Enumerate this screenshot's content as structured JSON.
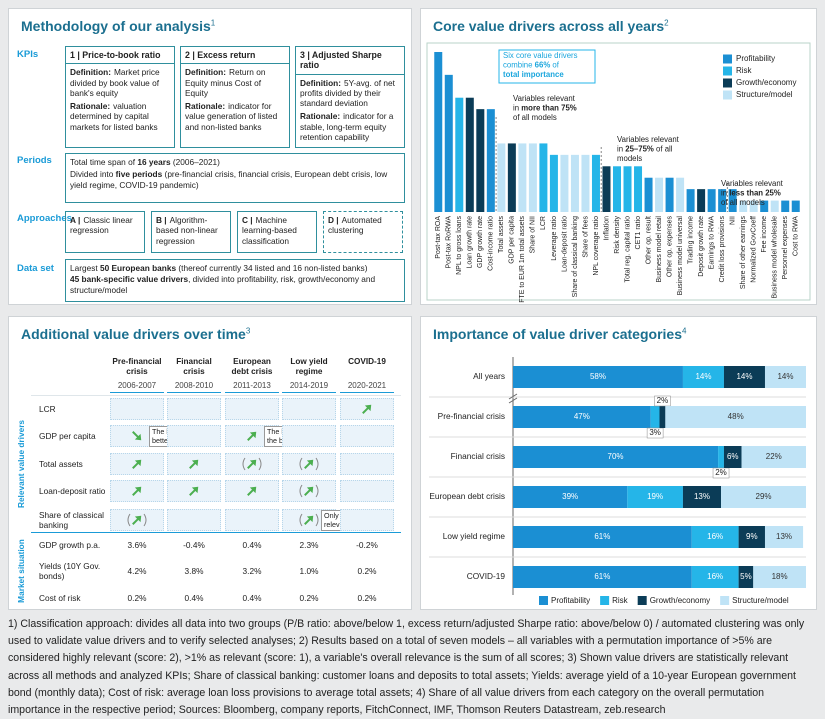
{
  "methodology": {
    "title": "Methodology of our analysis",
    "title_note": "1",
    "sections": {
      "kpis": "KPIs",
      "periods": "Periods",
      "approaches": "Approaches",
      "data_set": "Data set"
    },
    "kpis": [
      {
        "heading": "1 | Price-to-book ratio",
        "definition_label": "Definition:",
        "definition": "Market price divided by book value of bank's equity",
        "rationale_label": "Rationale:",
        "rationale": "valuation determined by capital markets for listed banks"
      },
      {
        "heading": "2 | Excess return",
        "definition_label": "Definition:",
        "definition": "Return on Equity minus Cost of Equity",
        "rationale_label": "Rationale:",
        "rationale": "indicator for value generation of listed and non-listed banks"
      },
      {
        "heading": "3 | Adjusted Sharpe ratio",
        "definition_label": "Definition:",
        "definition": "5Y-avg. of net profits divided by their standard deviation",
        "rationale_label": "Rationale:",
        "rationale": "indicator for a stable, long-term equity retention capability"
      }
    ],
    "periods": [
      [
        {
          "text": "Total time span of "
        },
        {
          "text": "16 years",
          "bold": true
        },
        {
          "text": " (2006–2021)"
        }
      ],
      [
        {
          "text": "Divided into "
        },
        {
          "text": "five periods",
          "bold": true
        },
        {
          "text": " (pre-financial crisis, financial crisis, European debt crisis, low yield regime, COVID-19 pandemic)"
        }
      ]
    ],
    "approaches": [
      {
        "key": "A |",
        "text": "Classic linear regression",
        "dashed": false
      },
      {
        "key": "B |",
        "text": "Algorithm-based non-linear regression",
        "dashed": false
      },
      {
        "key": "C |",
        "text": "Machine learning-based classification",
        "dashed": false
      },
      {
        "key": "D |",
        "text": "Automated clustering",
        "dashed": true
      }
    ],
    "data_set": [
      [
        {
          "text": "Largest "
        },
        {
          "text": "50 European banks",
          "bold": true
        },
        {
          "text": " (thereof currently 34 listed and 16 non-listed banks)"
        }
      ],
      [
        {
          "text": "45 bank-specific value drivers",
          "bold": true
        },
        {
          "text": ", divided into profitability, risk, growth/economy and structure/model"
        }
      ]
    ]
  },
  "chart_data": [
    {
      "type": "bar",
      "title": "Core value drivers across all years",
      "title_note": "2",
      "categories": [
        "Post-tax ROA",
        "Post-tax RoRWA",
        "NPL to gross loans",
        "Loan growth rate",
        "GDP growth rate",
        "Cost-income ratio",
        "Total assets",
        "GDP per capita",
        "FTE to EUR 1m total assets",
        "Share of NII",
        "LCR",
        "Leverage ratio",
        "Loan-deposit ratio",
        "Share of classical banking",
        "Share of fees",
        "NPL coverage ratio",
        "Inflation",
        "Risk density",
        "Total reg. capital ratio",
        "CET1 ratio",
        "Other op. result",
        "Business model retail",
        "Other op. expenses",
        "Business model universal",
        "Trading income",
        "Deposit growth rate",
        "Earnings to RWA",
        "Credit loss provisions",
        "NII",
        "Share of other earnings",
        "Normalized GovCoeff",
        "Fee income",
        "Business model wholesale",
        "Personnel expenses",
        "Cost to RWA"
      ],
      "values": [
        14,
        12,
        10,
        10,
        9,
        9,
        6,
        6,
        6,
        6,
        6,
        5,
        5,
        5,
        5,
        5,
        4,
        4,
        4,
        4,
        3,
        3,
        3,
        3,
        2,
        2,
        2,
        2,
        2,
        1,
        1,
        1,
        1,
        1,
        1
      ],
      "colors": [
        "#1b8fd3",
        "#1b8fd3",
        "#25b5e8",
        "#0b3c57",
        "#0b3c57",
        "#1b8fd3",
        "#bfe3f6",
        "#0b3c57",
        "#bfe3f6",
        "#bfe3f6",
        "#25b5e8",
        "#25b5e8",
        "#bfe3f6",
        "#bfe3f6",
        "#bfe3f6",
        "#25b5e8",
        "#0b3c57",
        "#25b5e8",
        "#25b5e8",
        "#25b5e8",
        "#1b8fd3",
        "#bfe3f6",
        "#1b8fd3",
        "#bfe3f6",
        "#1b8fd3",
        "#0b3c57",
        "#1b8fd3",
        "#1b8fd3",
        "#1b8fd3",
        "#bfe3f6",
        "#bfe3f6",
        "#1b8fd3",
        "#bfe3f6",
        "#1b8fd3",
        "#1b8fd3"
      ],
      "ylim": [
        0,
        14
      ],
      "legend": [
        {
          "name": "Profitability",
          "color": "#1b8fd3"
        },
        {
          "name": "Risk",
          "color": "#25b5e8"
        },
        {
          "name": "Growth/economy",
          "color": "#0b3c57"
        },
        {
          "name": "Structure/model",
          "color": "#bfe3f6"
        }
      ],
      "annotations": [
        {
          "boxed": true,
          "color": "#1aa6dd",
          "lines": [
            [
              {
                "text": "Six core value drivers"
              }
            ],
            [
              {
                "text": "combine "
              },
              {
                "text": "66%",
                "bold": true
              },
              {
                "text": " of"
              }
            ],
            [
              {
                "text": "total importance",
                "bold": true
              }
            ]
          ]
        },
        {
          "boxed": false,
          "color": "#222222",
          "lines": [
            [
              {
                "text": "Variables relevant"
              }
            ],
            [
              {
                "text": "in "
              },
              {
                "text": "more than 75%",
                "bold": true
              }
            ],
            [
              {
                "text": "of all models"
              }
            ]
          ]
        },
        {
          "boxed": false,
          "color": "#222222",
          "lines": [
            [
              {
                "text": "Variables relevant"
              }
            ],
            [
              {
                "text": "in "
              },
              {
                "text": "25–75%",
                "bold": true
              },
              {
                "text": " of all"
              }
            ],
            [
              {
                "text": "models"
              }
            ]
          ]
        },
        {
          "boxed": false,
          "color": "#222222",
          "lines": [
            [
              {
                "text": "Variables relevant"
              }
            ],
            [
              {
                "text": "in "
              },
              {
                "text": "less than 25%",
                "bold": true
              }
            ],
            [
              {
                "text": "of all models"
              }
            ]
          ]
        }
      ]
    },
    {
      "type": "stacked_bar",
      "title": "Importance of value driver categories",
      "title_note": "4",
      "categories": [
        "All years",
        "Pre-financial crisis",
        "Financial crisis",
        "European debt crisis",
        "Low yield regime",
        "COVID-19"
      ],
      "xlim": [
        0,
        100
      ],
      "series": [
        {
          "name": "Profitability",
          "color": "#1b8fd3",
          "label_color": "#ffffff",
          "values": [
            58,
            47,
            70,
            39,
            61,
            61
          ],
          "value_labels": [
            "58%",
            "47%",
            "70%",
            "39%",
            "61%",
            "61%"
          ]
        },
        {
          "name": "Risk",
          "color": "#25b5e8",
          "label_color": "#ffffff",
          "values": [
            14,
            3,
            2,
            19,
            16,
            16
          ],
          "value_labels": [
            "14%",
            "3%",
            "2%",
            "19%",
            "16%",
            "16%"
          ]
        },
        {
          "name": "Growth/economy",
          "color": "#0b3c57",
          "label_color": "#ffffff",
          "values": [
            14,
            2,
            6,
            13,
            9,
            5
          ],
          "value_labels": [
            "14%",
            "2%",
            "6%",
            "13%",
            "9%",
            "5%"
          ]
        },
        {
          "name": "Structure/model",
          "color": "#bfe3f6",
          "label_color": "#333333",
          "values": [
            14,
            48,
            22,
            29,
            13,
            18
          ],
          "value_labels": [
            "14%",
            "48%",
            "22%",
            "29%",
            "13%",
            "18%"
          ]
        }
      ]
    }
  ],
  "drivers_table": {
    "title": "Additional value drivers over time",
    "title_note": "3",
    "columns": [
      {
        "name": "Pre-financial crisis",
        "years": "2006-2007"
      },
      {
        "name": "Financial crisis",
        "years": "2008-2010"
      },
      {
        "name": "European debt crisis",
        "years": "2011-2013"
      },
      {
        "name": "Low yield regime",
        "years": "2014-2019"
      },
      {
        "name": "COVID-19",
        "years": "2020-2021"
      }
    ],
    "groups": [
      {
        "label": "Relevant value drivers",
        "rows": [
          {
            "label": "LCR",
            "cells": [
              null,
              null,
              null,
              null,
              {
                "arrow": "up",
                "weak": false
              }
            ]
          },
          {
            "label": "GDP per capita",
            "cells": [
              {
                "arrow": "down",
                "weak": false,
                "note": "The lower the better"
              },
              null,
              {
                "arrow": "up",
                "weak": false,
                "note": "The higher the better"
              },
              null,
              null
            ]
          },
          {
            "label": "Total assets",
            "cells": [
              {
                "arrow": "up",
                "weak": false
              },
              {
                "arrow": "up",
                "weak": false
              },
              {
                "arrow": "up",
                "weak": true
              },
              {
                "arrow": "up",
                "weak": true
              },
              null
            ]
          },
          {
            "label": "Loan-deposit ratio",
            "cells": [
              {
                "arrow": "up",
                "weak": false
              },
              {
                "arrow": "up",
                "weak": false
              },
              {
                "arrow": "up",
                "weak": false
              },
              {
                "arrow": "up",
                "weak": true
              },
              null
            ]
          },
          {
            "label": "Share of classical banking",
            "cells": [
              {
                "arrow": "up",
                "weak": true
              },
              null,
              null,
              {
                "arrow": "up",
                "weak": true,
                "note": "Only slightly relevant"
              },
              null
            ]
          }
        ]
      },
      {
        "label": "Market situation",
        "rows": [
          {
            "label": "GDP growth p.a.",
            "cells": [
              "3.6%",
              "-0.4%",
              "0.4%",
              "2.3%",
              "-0.2%"
            ]
          },
          {
            "label": "Yields (10Y Gov. bonds)",
            "cells": [
              "4.2%",
              "3.8%",
              "3.2%",
              "1.0%",
              "0.2%"
            ]
          },
          {
            "label": "Cost of risk",
            "cells": [
              "0.2%",
              "0.4%",
              "0.4%",
              "0.2%",
              "0.2%"
            ]
          }
        ]
      }
    ]
  },
  "footnote": "1) Classification approach: divides all data into two groups (P/B ratio: above/below 1, excess return/adjusted Sharpe ratio: above/below 0) / automated clustering was only used to validate value drivers and to verify selected analyses; 2) Results based on a total of seven models – all variables with a permutation importance of >5% are considered highly relevant (score: 2), >1% as relevant (score: 1), a variable's overall relevance is the sum of all scores; 3) Shown value drivers are statistically relevant across all methods and analyzed KPIs; Share of classical banking: customer loans and deposits to total assets; Yields: average yield of a 10-year European government bond (monthly data); Cost of risk: average loan loss provisions to average total assets; 4) Share of all value drivers from each category on the overall permutation importance in the respective period; Sources: Bloomberg, company reports, FitchConnect, IMF, Thomson Reuters Datastream, zeb.research"
}
